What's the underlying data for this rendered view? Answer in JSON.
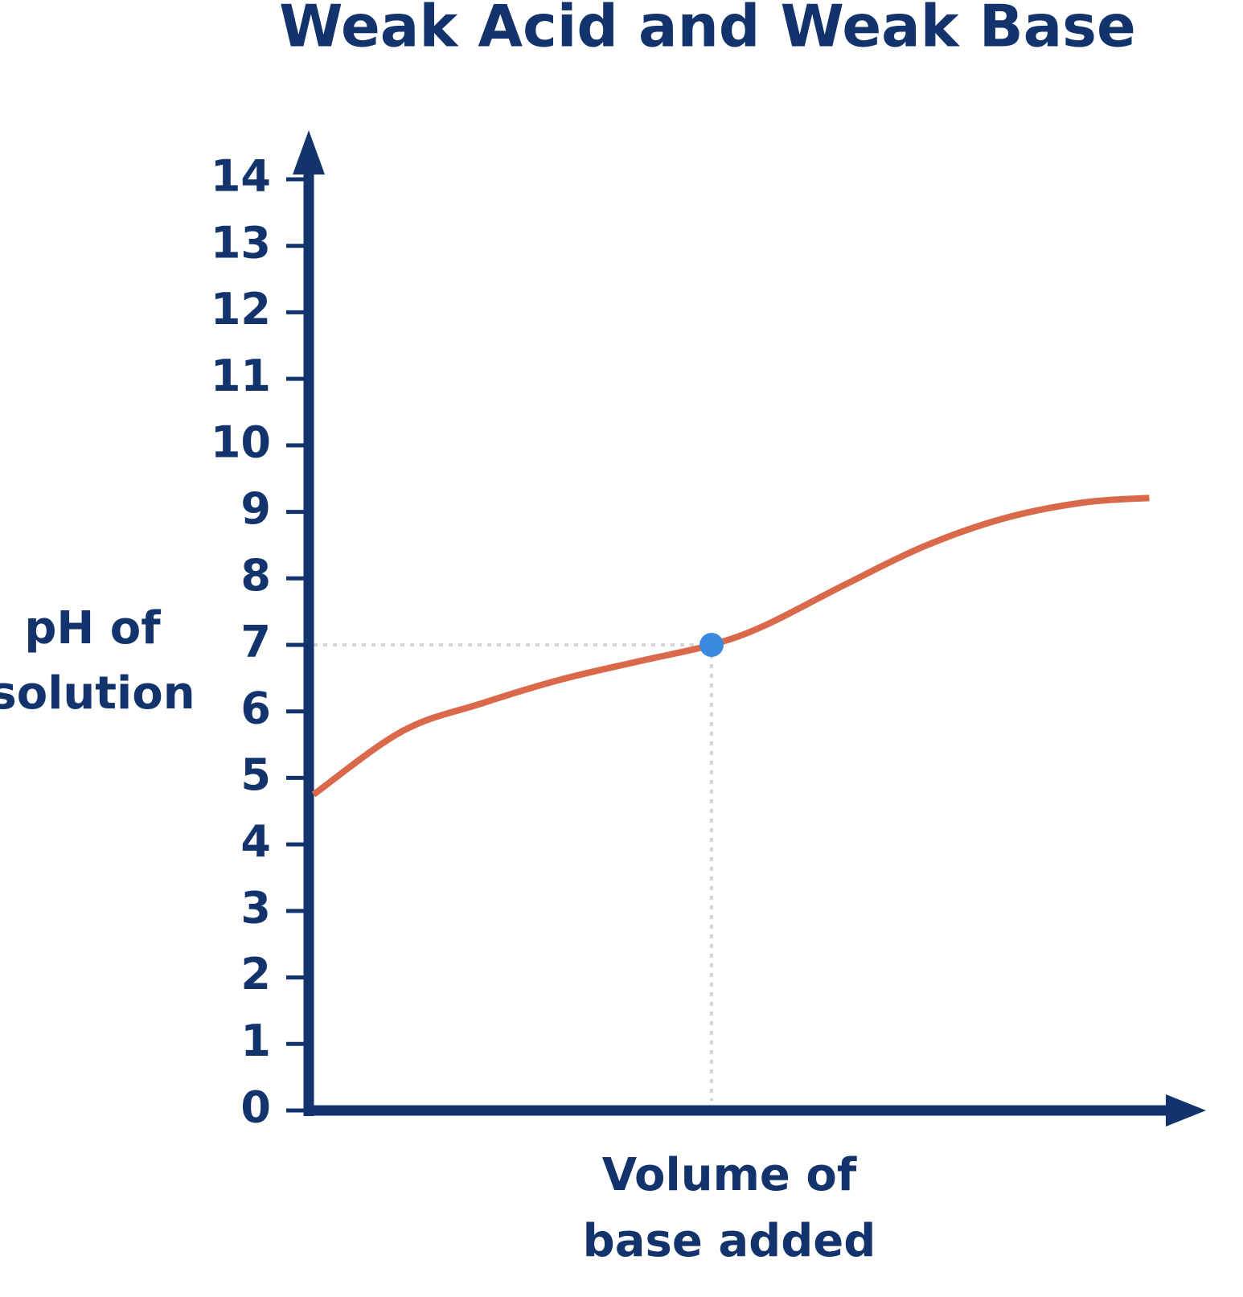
{
  "chart_data": {
    "type": "line",
    "title": "Weak Acid and Weak Base",
    "y_label": [
      "pH of",
      "solution"
    ],
    "x_label": [
      "Volume of",
      "base added"
    ],
    "x": [
      0,
      10,
      19,
      28,
      37,
      45,
      51,
      60,
      69,
      78,
      87,
      94.5
    ],
    "series": [
      {
        "color": "#d9694a",
        "values": [
          4.75,
          5.7,
          6.12,
          6.48,
          6.76,
          7.0,
          7.29,
          7.9,
          8.48,
          8.9,
          9.14,
          9.21
        ]
      }
    ],
    "point": {
      "x": 45,
      "y": 7,
      "color": "#3a8be0"
    },
    "xlim": [
      0,
      100
    ],
    "ylim": [
      0,
      14
    ],
    "yticks": [
      0,
      1,
      2,
      3,
      4,
      5,
      6,
      7,
      8,
      9,
      10,
      11,
      12,
      13,
      14
    ],
    "axis_color": "#12336b"
  }
}
